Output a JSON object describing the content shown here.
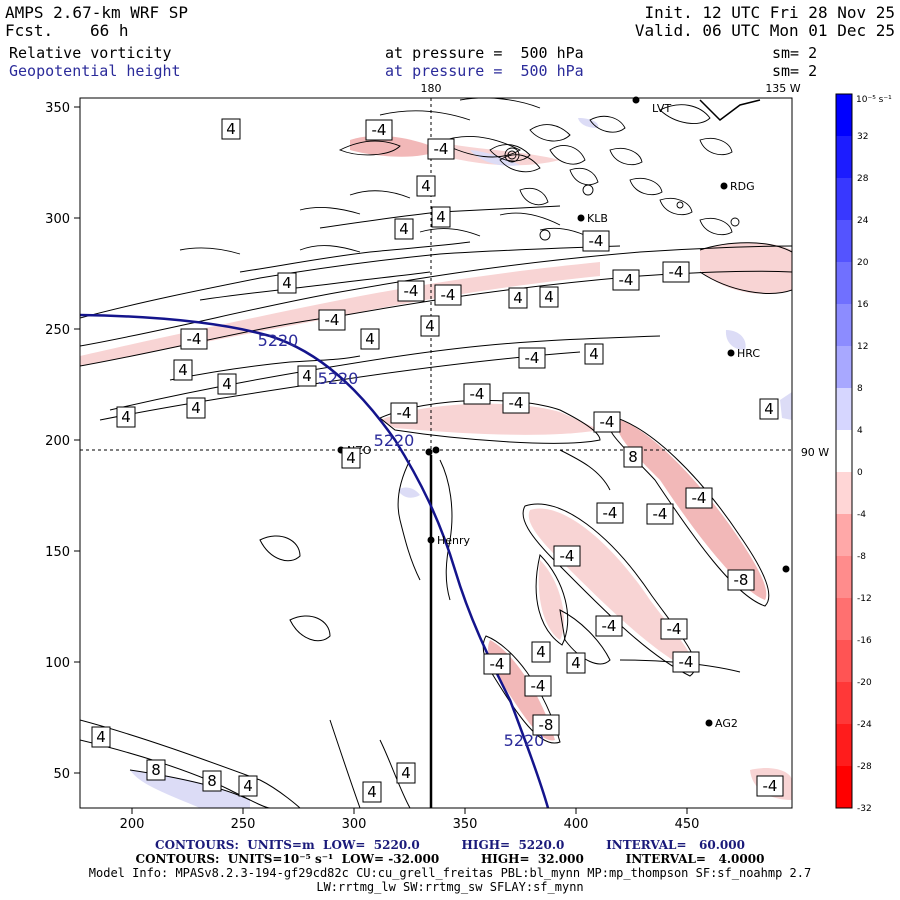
{
  "header": {
    "model": "AMPS 2.67-km WRF SP",
    "fcst_label": "Fcst.",
    "fcst_value": "66 h",
    "init": "Init. 12 UTC Fri 28 Nov 25",
    "valid": "Valid. 06 UTC Mon 01 Dec 25",
    "field1": "Relative vorticity",
    "field1_level": "at pressure =  500 hPa",
    "field1_sm": "sm= 2",
    "field2": "Geopotential height",
    "field2_level": "at pressure =  500 hPa",
    "field2_sm": "sm= 2"
  },
  "map": {
    "x_ticks": [
      "200",
      "250",
      "300",
      "350",
      "400",
      "450"
    ],
    "y_ticks": [
      "350",
      "300",
      "250",
      "200",
      "150",
      "100",
      "50"
    ],
    "meridian_labels": {
      "lon180": "180",
      "lon135": "135 W",
      "lon90": "90 W"
    },
    "stations": [
      {
        "name": "LVT"
      },
      {
        "name": "RDG"
      },
      {
        "name": "KLB"
      },
      {
        "name": "HRC"
      },
      {
        "name": "NZO"
      },
      {
        "name": "Henry"
      },
      {
        "name": "AG2"
      }
    ],
    "height_contour_label": "5220",
    "vorticity_labels": [
      "4",
      "-4",
      "8",
      "-8"
    ]
  },
  "colorbar": {
    "unit": "10⁻⁵ s⁻¹",
    "ticks": [
      "32",
      "28",
      "24",
      "20",
      "16",
      "12",
      "8",
      "4",
      "0",
      "-4",
      "-8",
      "-12",
      "-16",
      "-20",
      "-24",
      "-28",
      "-32"
    ],
    "colors_top_to_bottom": [
      "#0000ff",
      "#1c1cff",
      "#3838ff",
      "#5454ff",
      "#7070ff",
      "#8c8cff",
      "#a8a8ff",
      "#d6d6ff",
      "#ffffff",
      "#ffd6d6",
      "#ffa8a8",
      "#ff8c8c",
      "#ff7070",
      "#ff5454",
      "#ff3838",
      "#ff1c1c",
      "#ff0000"
    ]
  },
  "footer": {
    "line1": "CONTOURS:  UNITS=m  LOW=  5220.0          HIGH=  5220.0          INTERVAL=   60.000",
    "line2": "CONTOURS:  UNITS=10⁻⁵ s⁻¹  LOW= -32.000          HIGH=  32.000          INTERVAL=   4.0000",
    "line3": "Model Info: MPASv8.2.3-194-gf29cd82c CU:cu_grell_freitas PBL:bl_mynn MP:mp_thompson SF:sf_noahmp 2.7",
    "line4": "LW:rrtmg_lw SW:rrtmg_sw SFLAY:sf_mynn"
  }
}
